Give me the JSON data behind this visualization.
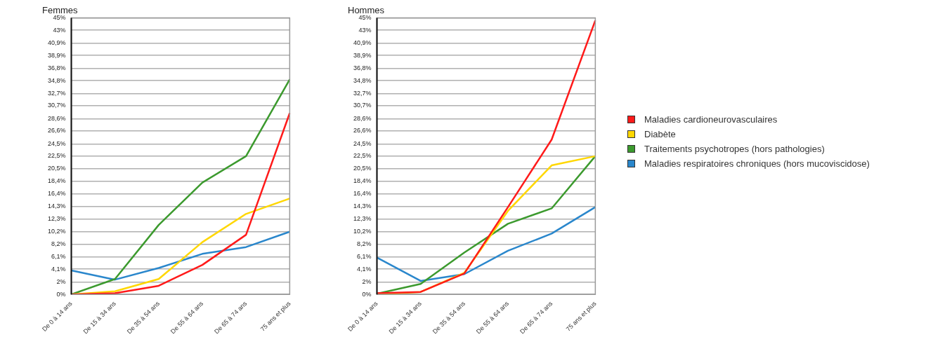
{
  "chart_data": [
    {
      "type": "line",
      "title": "Femmes",
      "categories": [
        "De 0 à 14 ans",
        "De 15 à 34 ans",
        "De 35 à 54 ans",
        "De 55 à 64 ans",
        "De 65 à 74 ans",
        "75 ans et plus"
      ],
      "series": [
        {
          "color": "#ff1a1a",
          "values": [
            0,
            0.2,
            1.4,
            4.8,
            9.7,
            29.5
          ]
        },
        {
          "color": "#ffd700",
          "values": [
            0,
            0.5,
            2.5,
            8.5,
            13.1,
            15.6
          ]
        },
        {
          "color": "#3c9a2e",
          "values": [
            0,
            2.5,
            11.3,
            18.2,
            22.5,
            35
          ]
        },
        {
          "color": "#2a87cc",
          "values": [
            3.9,
            2.4,
            4.3,
            6.6,
            7.7,
            10.2
          ]
        }
      ],
      "ylim": [
        0,
        45
      ],
      "yticks": [
        {
          "value": 0,
          "label": "0%"
        },
        {
          "value": 2,
          "label": "2%"
        },
        {
          "value": 4.1,
          "label": "4,1%"
        },
        {
          "value": 6.1,
          "label": "6,1%"
        },
        {
          "value": 8.2,
          "label": "8,2%"
        },
        {
          "value": 10.2,
          "label": "10,2%"
        },
        {
          "value": 12.3,
          "label": "12,3%"
        },
        {
          "value": 14.3,
          "label": "14,3%"
        },
        {
          "value": 16.4,
          "label": "16,4%"
        },
        {
          "value": 18.4,
          "label": "18,4%"
        },
        {
          "value": 20.5,
          "label": "20,5%"
        },
        {
          "value": 22.5,
          "label": "22,5%"
        },
        {
          "value": 24.5,
          "label": "24,5%"
        },
        {
          "value": 26.6,
          "label": "26,6%"
        },
        {
          "value": 28.6,
          "label": "28,6%"
        },
        {
          "value": 30.7,
          "label": "30,7%"
        },
        {
          "value": 32.7,
          "label": "32,7%"
        },
        {
          "value": 34.8,
          "label": "34,8%"
        },
        {
          "value": 36.8,
          "label": "36,8%"
        },
        {
          "value": 38.9,
          "label": "38,9%"
        },
        {
          "value": 40.9,
          "label": "40,9%"
        },
        {
          "value": 43,
          "label": "43%"
        },
        {
          "value": 45,
          "label": "45%"
        }
      ],
      "grid": "y",
      "marker": "none",
      "legend": false
    },
    {
      "type": "line",
      "title": "Hommes",
      "categories": [
        "De 0 à 14 ans",
        "De 15 à 34 ans",
        "De 35 à 54 ans",
        "De 55 à 64 ans",
        "De 65 à 74 ans",
        "75 ans et plus"
      ],
      "series": [
        {
          "name": "Maladies cardioneurovasculaires",
          "color": "#ff1a1a",
          "values": [
            0.2,
            0.4,
            3.4,
            14.2,
            25.2,
            44.6
          ]
        },
        {
          "name": "Diabète",
          "color": "#ffd700",
          "values": [
            0,
            0.4,
            3.5,
            13.6,
            21,
            22.5
          ]
        },
        {
          "name": "Traitements psychotropes (hors pathologies)",
          "color": "#3c9a2e",
          "values": [
            0.1,
            1.7,
            6.8,
            11.5,
            14,
            22.5
          ]
        },
        {
          "name": "Maladies respiratoires chroniques (hors mucoviscidose)",
          "color": "#2a87cc",
          "values": [
            6,
            2.2,
            3.3,
            7.1,
            9.9,
            14.2
          ]
        }
      ],
      "ylim": [
        0,
        45
      ],
      "yticks": [
        {
          "value": 0,
          "label": "0%"
        },
        {
          "value": 2,
          "label": "2%"
        },
        {
          "value": 4.1,
          "label": "4,1%"
        },
        {
          "value": 6.1,
          "label": "6,1%"
        },
        {
          "value": 8.2,
          "label": "8,2%"
        },
        {
          "value": 10.2,
          "label": "10,2%"
        },
        {
          "value": 12.3,
          "label": "12,3%"
        },
        {
          "value": 14.3,
          "label": "14,3%"
        },
        {
          "value": 16.4,
          "label": "16,4%"
        },
        {
          "value": 18.4,
          "label": "18,4%"
        },
        {
          "value": 20.5,
          "label": "20,5%"
        },
        {
          "value": 22.5,
          "label": "22,5%"
        },
        {
          "value": 24.5,
          "label": "24,5%"
        },
        {
          "value": 26.6,
          "label": "26,6%"
        },
        {
          "value": 28.6,
          "label": "28,6%"
        },
        {
          "value": 30.7,
          "label": "30,7%"
        },
        {
          "value": 32.7,
          "label": "32,7%"
        },
        {
          "value": 34.8,
          "label": "34,8%"
        },
        {
          "value": 36.8,
          "label": "36,8%"
        },
        {
          "value": 38.9,
          "label": "38,9%"
        },
        {
          "value": 40.9,
          "label": "40,9%"
        },
        {
          "value": 43,
          "label": "43%"
        },
        {
          "value": 45,
          "label": "45%"
        }
      ],
      "grid": "y",
      "marker": "none",
      "legend": "right"
    }
  ]
}
